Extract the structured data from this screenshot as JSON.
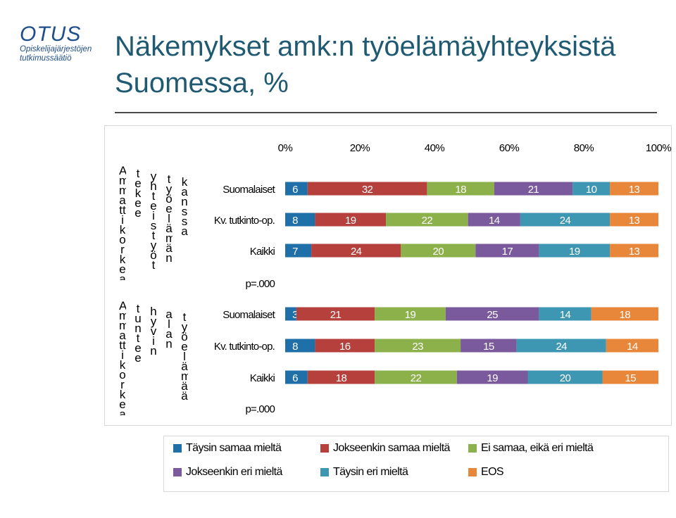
{
  "logo": {
    "main": "OTUS",
    "line1": "Opiskelijajärjestöjen",
    "line2": "tutkimussäätiö"
  },
  "title": "Näkemykset amk:n työelämäyhteyksistä Suomessa, %",
  "colors": {
    "Täysin samaa mieltä": "#1f6fa8",
    "Jokseenkin samaa mieltä": "#b5403c",
    "Ei samaa, eikä eri mieltä": "#8cb04a",
    "Jokseenkin eri mieltä": "#7a5a9c",
    "Täysin eri mieltä": "#3d97b3",
    "EOS": "#e8873a"
  },
  "vertical_labels": [
    "Ammattikorkeakoulu",
    "tekee",
    "yhteistyötä",
    "työelämän",
    "kanssa",
    "Ammattikorkeakoulu",
    "tuntee",
    "hyvin",
    "alan",
    "työelämää"
  ],
  "chart_data": {
    "type": "bar",
    "orientation": "horizontal",
    "stacked": "percent",
    "xlim": [
      0,
      100
    ],
    "x_ticks": [
      "0%",
      "20%",
      "40%",
      "60%",
      "80%",
      "100%"
    ],
    "x_axis_position": "top",
    "groups": [
      {
        "rows": [
          "Suomalaiset",
          "Kv. tutkinto-op.",
          "Kaikki"
        ],
        "p_label": "p=.000"
      },
      {
        "rows": [
          "Suomalaiset",
          "Kv. tutkinto-op.",
          "Kaikki"
        ],
        "p_label": "p=.000"
      }
    ],
    "categories": [
      "Suomalaiset",
      "Kv. tutkinto-op.",
      "Kaikki",
      "Suomalaiset",
      "Kv. tutkinto-op.",
      "Kaikki"
    ],
    "series": [
      {
        "name": "Täysin samaa mieltä",
        "values": [
          6,
          8,
          7,
          3,
          8,
          6
        ]
      },
      {
        "name": "Jokseenkin samaa mieltä",
        "values": [
          32,
          19,
          24,
          21,
          16,
          18
        ]
      },
      {
        "name": "Ei samaa, eikä eri mieltä",
        "values": [
          18,
          22,
          20,
          19,
          23,
          22
        ]
      },
      {
        "name": "Jokseenkin eri mieltä",
        "values": [
          21,
          14,
          17,
          25,
          15,
          19
        ]
      },
      {
        "name": "Täysin eri mieltä",
        "values": [
          10,
          24,
          19,
          14,
          24,
          20
        ]
      },
      {
        "name": "EOS",
        "values": [
          13,
          13,
          13,
          18,
          14,
          15
        ]
      }
    ],
    "legend": [
      "Täysin samaa mieltä",
      "Jokseenkin samaa mieltä",
      "Ei samaa, eikä eri mieltä",
      "Jokseenkin eri mieltä",
      "Täysin eri mieltä",
      "EOS"
    ],
    "legend_position": "bottom",
    "grid": false,
    "data_labels": true
  }
}
